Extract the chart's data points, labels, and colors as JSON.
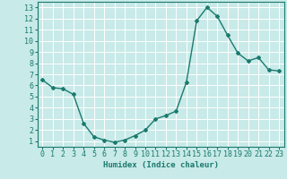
{
  "x": [
    0,
    1,
    2,
    3,
    4,
    5,
    6,
    7,
    8,
    9,
    10,
    11,
    12,
    13,
    14,
    15,
    16,
    17,
    18,
    19,
    20,
    21,
    22,
    23
  ],
  "y": [
    6.5,
    5.8,
    5.7,
    5.2,
    2.6,
    1.4,
    1.1,
    0.9,
    1.1,
    1.5,
    2.0,
    3.0,
    3.3,
    3.7,
    6.3,
    11.8,
    13.0,
    12.2,
    10.5,
    8.9,
    8.2,
    8.5,
    7.4,
    7.3
  ],
  "line_color": "#1a7a6e",
  "marker": "D",
  "marker_size": 2.0,
  "bg_color": "#c8eae8",
  "grid_color": "#ffffff",
  "xlabel": "Humidex (Indice chaleur)",
  "xlim": [
    -0.5,
    23.5
  ],
  "ylim": [
    0.5,
    13.5
  ],
  "xticks": [
    0,
    1,
    2,
    3,
    4,
    5,
    6,
    7,
    8,
    9,
    10,
    11,
    12,
    13,
    14,
    15,
    16,
    17,
    18,
    19,
    20,
    21,
    22,
    23
  ],
  "yticks": [
    1,
    2,
    3,
    4,
    5,
    6,
    7,
    8,
    9,
    10,
    11,
    12,
    13
  ],
  "xlabel_fontsize": 6.5,
  "tick_fontsize": 6.0,
  "line_width": 1.0
}
